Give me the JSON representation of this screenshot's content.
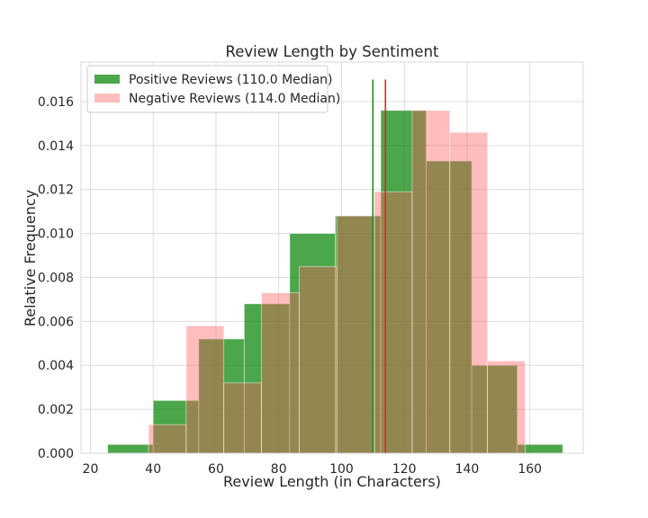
{
  "chart_data": {
    "type": "histogram",
    "title": "Review Length by Sentiment",
    "xlabel": "Review Length (in Characters)",
    "ylabel": "Relative Frequency",
    "xlim": [
      17,
      177
    ],
    "ylim": [
      0,
      0.0178
    ],
    "xticks": [
      20,
      40,
      60,
      80,
      100,
      120,
      140,
      160
    ],
    "yticks": [
      0.0,
      0.002,
      0.004,
      0.006,
      0.008,
      0.01,
      0.012,
      0.014,
      0.016
    ],
    "ytick_labels": [
      "0.000",
      "0.002",
      "0.004",
      "0.006",
      "0.008",
      "0.010",
      "0.012",
      "0.014",
      "0.016"
    ],
    "grid": true,
    "legend_position": "top-left",
    "series": [
      {
        "name": "Positive Reviews (110.0 Median)",
        "color": "#008000",
        "bin_edges": [
          25.5,
          40,
          54.5,
          69,
          83.5,
          98,
          112.5,
          127,
          141.5,
          156,
          170.5
        ],
        "values": [
          0.0004,
          0.0024,
          0.0052,
          0.0068,
          0.01,
          0.0108,
          0.0156,
          0.0133,
          0.004,
          0.0004
        ],
        "median": 110.0
      },
      {
        "name": "Negative Reviews (114.0 Median)",
        "color": "#ff5a5a",
        "bin_edges": [
          38.5,
          50.5,
          62.5,
          74.5,
          86.5,
          98.5,
          110.5,
          122.5,
          134.5,
          146.5,
          158.5
        ],
        "values": [
          0.0013,
          0.0058,
          0.0032,
          0.0073,
          0.0085,
          0.0108,
          0.0119,
          0.0156,
          0.0146,
          0.0042
        ],
        "median": 114.0
      }
    ],
    "median_line_top": 0.017
  }
}
